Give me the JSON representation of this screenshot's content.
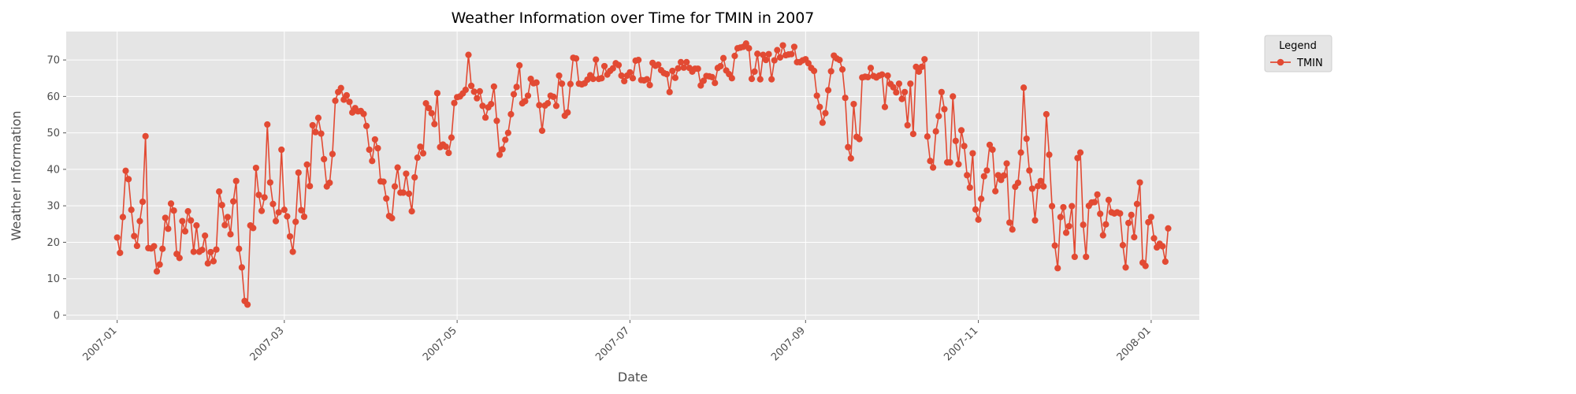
{
  "chart_data": {
    "type": "line",
    "title": "Weather Information over Time for TMIN in 2007",
    "xlabel": "Date",
    "ylabel": "Weather Information",
    "x_ticks": [
      "2007-01",
      "2007-03",
      "2007-05",
      "2007-07",
      "2007-09",
      "2007-11",
      "2008-01"
    ],
    "y_ticks": [
      0,
      10,
      20,
      30,
      40,
      50,
      60,
      70
    ],
    "xlim": [
      "2006-12-14",
      "2008-01-18"
    ],
    "ylim": [
      -1.3,
      77.8
    ],
    "grid": true,
    "legend": {
      "title": "Legend",
      "placement": "outside-right"
    },
    "colors": {
      "series": "#E24A33",
      "plot_bg": "#E5E5E5",
      "grid": "#FFFFFF",
      "legend_bg": "#E5E5E5"
    },
    "series": [
      {
        "name": "TMIN",
        "start_date": "2007-01-01",
        "values": [
          21.3,
          17.1,
          26.9,
          39.6,
          37.3,
          28.9,
          21.7,
          19.0,
          25.8,
          31.1,
          49.1,
          18.4,
          18.3,
          18.9,
          12.0,
          13.9,
          18.2,
          26.7,
          23.7,
          30.6,
          28.7,
          16.8,
          15.7,
          25.8,
          23.0,
          28.5,
          26.0,
          17.4,
          24.6,
          17.4,
          17.9,
          21.8,
          14.2,
          17.3,
          14.8,
          18.0,
          33.9,
          30.2,
          24.7,
          26.9,
          22.2,
          31.2,
          36.8,
          18.2,
          13.1,
          3.9,
          2.9,
          24.6,
          23.9,
          40.4,
          33.0,
          28.6,
          32.3,
          52.3,
          36.4,
          30.5,
          25.8,
          28.2,
          45.4,
          28.9,
          27.1,
          21.6,
          17.4,
          25.6,
          39.1,
          28.8,
          27.0,
          41.3,
          35.4,
          52.1,
          50.2,
          54.1,
          49.8,
          42.8,
          35.3,
          36.3,
          44.2,
          58.8,
          61.2,
          62.3,
          59.1,
          60.3,
          58.5,
          55.6,
          56.8,
          55.9,
          56.0,
          55.2,
          51.9,
          45.4,
          42.3,
          48.2,
          45.8,
          36.7,
          36.6,
          32.0,
          27.2,
          26.6,
          35.3,
          40.5,
          33.6,
          33.6,
          38.8,
          33.3,
          28.5,
          37.8,
          43.2,
          46.2,
          44.4,
          58.1,
          56.8,
          55.4,
          52.4,
          60.9,
          46.1,
          46.8,
          46.2,
          44.5,
          48.7,
          58.2,
          59.8,
          60.0,
          60.8,
          61.8,
          71.4,
          62.9,
          61.3,
          59.5,
          61.4,
          57.4,
          54.2,
          57.0,
          57.9,
          62.7,
          53.3,
          44.0,
          45.5,
          48.1,
          50.0,
          55.1,
          60.6,
          62.6,
          68.5,
          58.1,
          58.7,
          60.2,
          64.8,
          63.6,
          63.8,
          57.6,
          50.6,
          57.5,
          58.1,
          60.2,
          59.9,
          57.4,
          65.7,
          63.5,
          54.7,
          55.6,
          63.4,
          70.6,
          70.4,
          63.5,
          63.3,
          63.6,
          64.6,
          65.8,
          64.8,
          70.1,
          64.8,
          65.0,
          68.3,
          66.0,
          67.0,
          67.7,
          69.1,
          68.6,
          65.7,
          64.2,
          65.7,
          66.6,
          65.0,
          69.8,
          70.0,
          64.5,
          64.4,
          64.7,
          63.1,
          69.2,
          68.4,
          68.7,
          67.2,
          66.4,
          66.1,
          61.2,
          67.0,
          65.1,
          67.7,
          69.4,
          67.9,
          69.4,
          67.8,
          66.8,
          67.6,
          67.6,
          63.0,
          64.3,
          65.6,
          65.5,
          65.3,
          63.7,
          67.8,
          68.3,
          70.5,
          67.1,
          66.1,
          65.0,
          71.1,
          73.2,
          73.4,
          73.6,
          74.5,
          73.2,
          64.8,
          66.8,
          71.7,
          64.7,
          71.4,
          70.0,
          71.6,
          64.7,
          69.9,
          72.7,
          70.7,
          74.0,
          71.3,
          71.5,
          71.6,
          73.6,
          69.4,
          69.4,
          69.9,
          70.2,
          69.1,
          67.8,
          67.0,
          60.2,
          57.1,
          52.8,
          55.4,
          61.7,
          66.9,
          71.2,
          70.4,
          70.0,
          67.4,
          59.6,
          46.1,
          43.0,
          57.9,
          48.9,
          48.3,
          65.2,
          65.4,
          65.3,
          67.8,
          65.6,
          65.2,
          65.7,
          66.0,
          57.1,
          65.7,
          63.4,
          62.5,
          61.1,
          63.5,
          59.3,
          61.2,
          52.1,
          63.5,
          49.7,
          68.1,
          66.8,
          68.1,
          70.2,
          49.0,
          42.3,
          40.5,
          50.4,
          54.6,
          61.2,
          56.5,
          41.9,
          41.9,
          60.0,
          47.8,
          41.4,
          50.7,
          46.4,
          38.4,
          35.0,
          44.4,
          29.0,
          26.2,
          31.9,
          38.1,
          39.7,
          46.7,
          45.4,
          34.0,
          38.4,
          37.1,
          38.3,
          41.6,
          25.4,
          23.5,
          35.2,
          36.3,
          44.6,
          62.4,
          48.4,
          39.7,
          34.7,
          26.0,
          35.4,
          36.8,
          35.3,
          55.1,
          44.0,
          29.9,
          19.1,
          12.9,
          26.9,
          29.6,
          22.6,
          24.4,
          29.9,
          16.0,
          43.1,
          44.6,
          24.8,
          16.0,
          30.0,
          30.9,
          31.0,
          33.1,
          27.8,
          21.9,
          24.9,
          31.6,
          28.2,
          27.9,
          28.2,
          27.9,
          19.2,
          13.1,
          25.3,
          27.5,
          21.4,
          30.5,
          36.4,
          14.4,
          13.5,
          25.5,
          26.9,
          21.1,
          18.6,
          19.6,
          18.9,
          14.7,
          23.8
        ]
      }
    ]
  }
}
